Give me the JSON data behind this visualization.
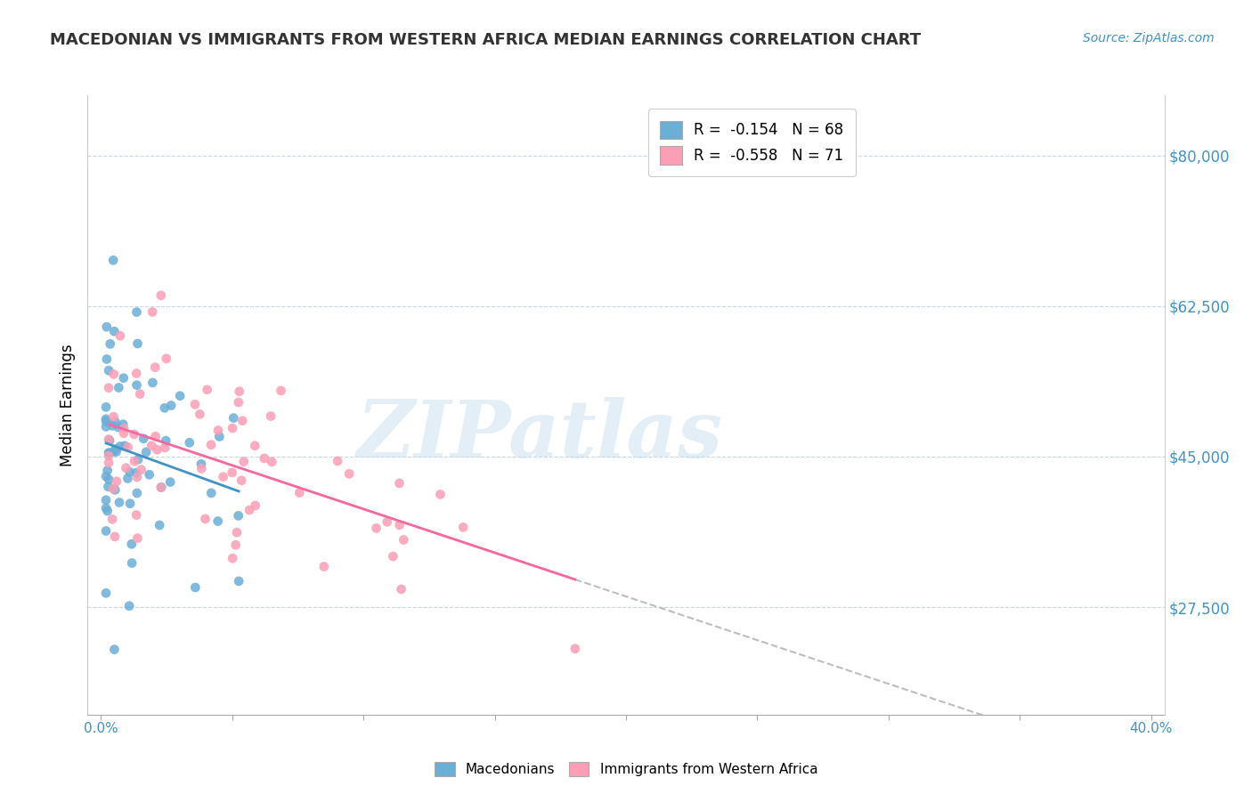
{
  "title": "MACEDONIAN VS IMMIGRANTS FROM WESTERN AFRICA MEDIAN EARNINGS CORRELATION CHART",
  "source": "Source: ZipAtlas.com",
  "ylabel": "Median Earnings",
  "y_ticks": [
    27500,
    45000,
    62500,
    80000
  ],
  "y_tick_labels": [
    "$27,500",
    "$45,000",
    "$62,500",
    "$80,000"
  ],
  "blue_color": "#6baed6",
  "pink_color": "#fa9fb5",
  "blue_line_color": "#4292c6",
  "pink_line_color": "#f768a1",
  "dashed_line_color": "#bdbdbd",
  "blue_R": -0.154,
  "blue_N": 68,
  "pink_R": -0.558,
  "pink_N": 71,
  "legend1_text": "R =  -0.154   N = 68",
  "legend2_text": "R =  -0.558   N = 71",
  "bottom_legend_labels": [
    "Macedonians",
    "Immigrants from Western Africa"
  ]
}
